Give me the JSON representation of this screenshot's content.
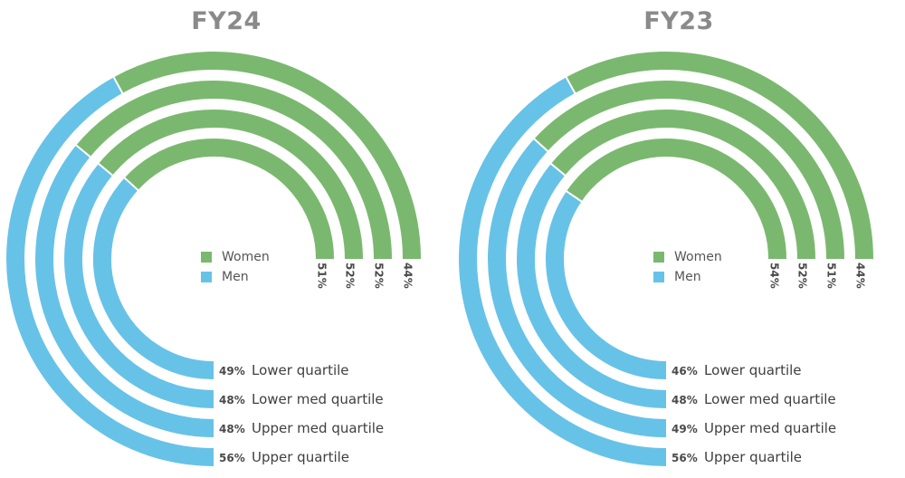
{
  "colors": {
    "women": "#7bb86f",
    "men": "#67c2e8",
    "title": "#8a8a8a"
  },
  "legend": {
    "women_label": "Women",
    "men_label": "Men"
  },
  "chart_data": [
    {
      "type": "donut",
      "title": "FY24",
      "series_names": [
        "Women",
        "Men"
      ],
      "categories": [
        "Lower quartile",
        "Lower med quartile",
        "Upper med quartile",
        "Upper quartile"
      ],
      "women_labels": [
        "51%",
        "52%",
        "52%",
        "44%"
      ],
      "men_labels": [
        "49%",
        "48%",
        "48%",
        "56%"
      ],
      "women": [
        51,
        52,
        52,
        44
      ],
      "men": [
        49,
        48,
        48,
        56
      ]
    },
    {
      "type": "donut",
      "title": "FY23",
      "series_names": [
        "Women",
        "Men"
      ],
      "categories": [
        "Lower quartile",
        "Lower med quartile",
        "Upper med quartile",
        "Upper quartile"
      ],
      "women_labels": [
        "54%",
        "52%",
        "51%",
        "44%"
      ],
      "men_labels": [
        "46%",
        "48%",
        "49%",
        "56%"
      ],
      "women": [
        54,
        52,
        51,
        44
      ],
      "men": [
        46,
        48,
        49,
        56
      ]
    }
  ]
}
